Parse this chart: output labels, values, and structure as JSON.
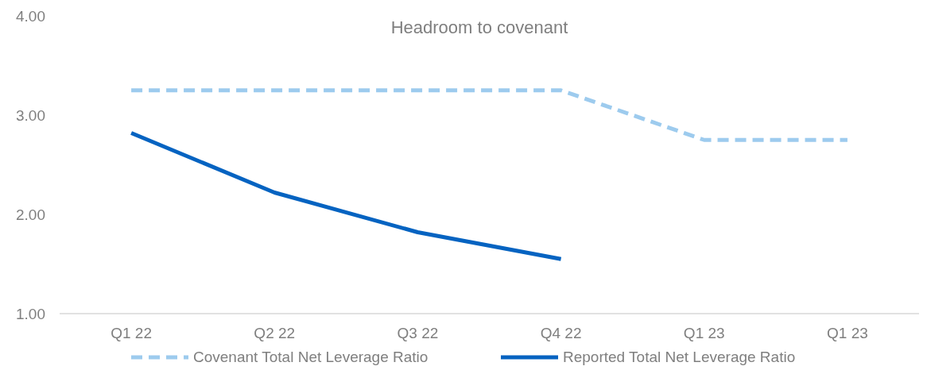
{
  "chart_data": {
    "type": "line",
    "title": "Headroom to covenant",
    "categories": [
      "Q1 22",
      "Q2 22",
      "Q3 22",
      "Q4 22",
      "Q1 23",
      "Q1 23"
    ],
    "series": [
      {
        "name": "Covenant Total Net Leverage Ratio",
        "color": "#9dcbee",
        "line_style": "dashed",
        "values": [
          3.25,
          3.25,
          3.25,
          3.25,
          2.75,
          2.75
        ]
      },
      {
        "name": "Reported Total Net Leverage Ratio",
        "color": "#0563c1",
        "line_style": "solid",
        "values": [
          2.82,
          2.22,
          1.82,
          1.55,
          null,
          null
        ]
      }
    ],
    "ylim": [
      1,
      4
    ],
    "yticks": [
      {
        "value": 1,
        "label": "1.00"
      },
      {
        "value": 2,
        "label": "2.00"
      },
      {
        "value": 3,
        "label": "3.00"
      },
      {
        "value": 4,
        "label": "4.00"
      }
    ],
    "grid": false,
    "legend": "bottom",
    "marker": "none"
  }
}
